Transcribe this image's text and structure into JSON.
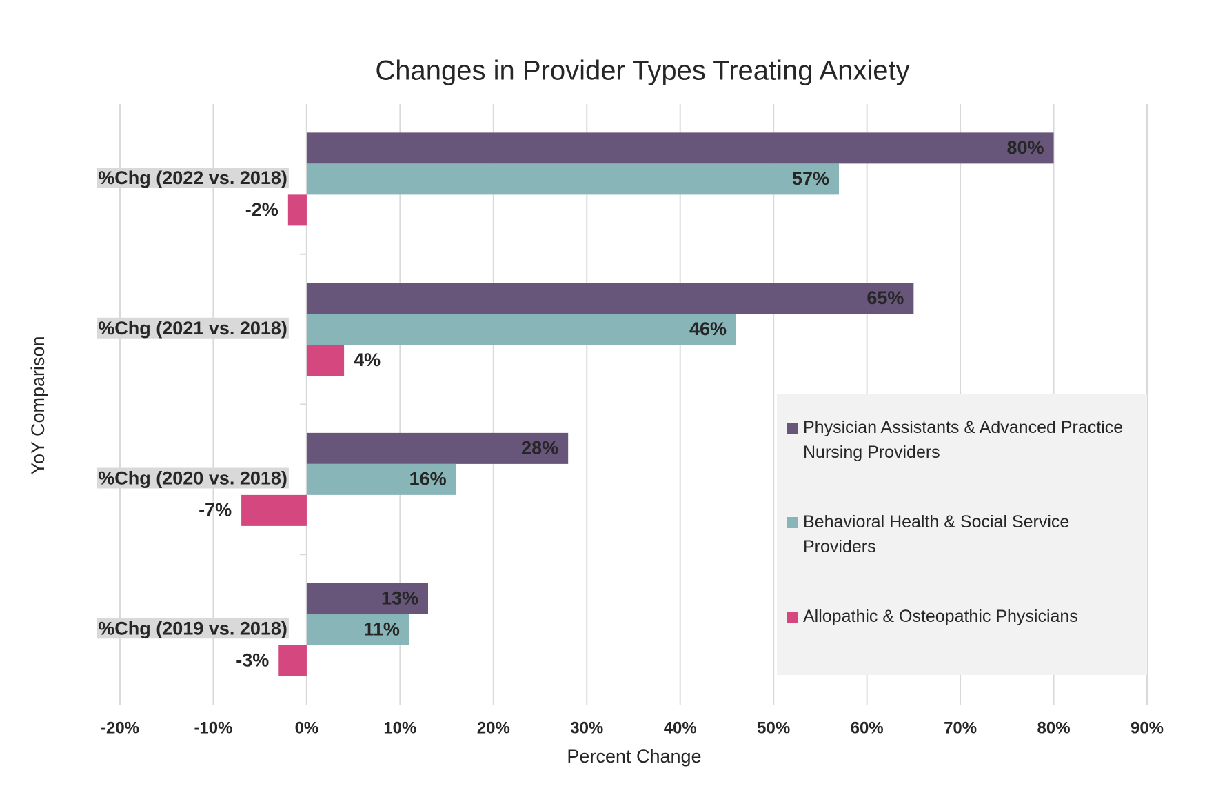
{
  "chart_data": {
    "type": "hbar",
    "title": "Changes in Provider Types Treating Anxiety",
    "x_label": "Percent Change",
    "y_label": "YoY Comparison",
    "categories": [
      "%Chg (2022 vs. 2018)",
      "%Chg (2021 vs. 2018)",
      "%Chg (2020 vs. 2018)",
      "%Chg (2019 vs. 2018)"
    ],
    "series": [
      {
        "name": "Physician Assistants & Advanced Practice Nursing Providers",
        "color": "#67567a",
        "values": [
          80,
          65,
          28,
          13
        ],
        "value_labels": [
          "80%",
          "65%",
          "28%",
          "13%"
        ]
      },
      {
        "name": "Behavioral Health & Social Service Providers",
        "color": "#88b5b7",
        "values": [
          57,
          46,
          16,
          11
        ],
        "value_labels": [
          "57%",
          "46%",
          "16%",
          "11%"
        ]
      },
      {
        "name": "Allopathic & Osteopathic Physicians",
        "color": "#d4477f",
        "values": [
          -2,
          4,
          -7,
          -3
        ],
        "value_labels": [
          "-2%",
          "4%",
          "-7%",
          "-3%"
        ]
      }
    ],
    "xlim": [
      -20,
      90
    ],
    "xticks": [
      {
        "value": -20,
        "label": "-20%"
      },
      {
        "value": -10,
        "label": "-10%"
      },
      {
        "value": 0,
        "label": "0%"
      },
      {
        "value": 10,
        "label": "10%"
      },
      {
        "value": 20,
        "label": "20%"
      },
      {
        "value": 30,
        "label": "30%"
      },
      {
        "value": 40,
        "label": "40%"
      },
      {
        "value": 50,
        "label": "50%"
      },
      {
        "value": 60,
        "label": "60%"
      },
      {
        "value": 70,
        "label": "70%"
      },
      {
        "value": 80,
        "label": "80%"
      },
      {
        "value": 90,
        "label": "90%"
      }
    ],
    "grid": true,
    "legend": "lower-right"
  }
}
